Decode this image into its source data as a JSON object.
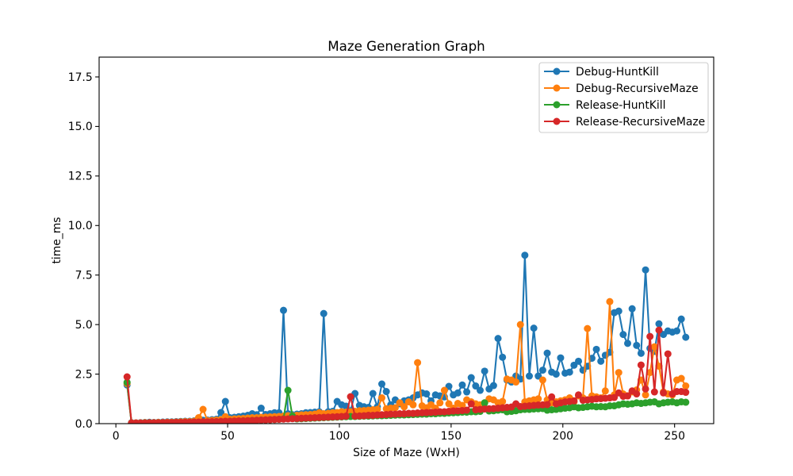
{
  "chart_data": {
    "type": "line",
    "title": "Maze Generation Graph",
    "xlabel": "Size of Maze (WxH)",
    "ylabel": "time_ms",
    "xlim": [
      -7.5,
      267.5
    ],
    "ylim": [
      0,
      18.5
    ],
    "xticks": [
      0,
      50,
      100,
      150,
      200,
      250
    ],
    "xtick_labels": [
      "0",
      "50",
      "100",
      "150",
      "200",
      "250"
    ],
    "yticks": [
      0,
      2.5,
      5,
      7.5,
      10,
      12.5,
      15,
      17.5
    ],
    "ytick_labels": [
      "0.0",
      "2.5",
      "5.0",
      "7.5",
      "10.0",
      "12.5",
      "15.0",
      "17.5"
    ],
    "grid": false,
    "legend": "top-right",
    "marker": "circle",
    "x": [
      5,
      7,
      9,
      11,
      13,
      15,
      17,
      19,
      21,
      23,
      25,
      27,
      29,
      31,
      33,
      35,
      37,
      39,
      41,
      43,
      45,
      47,
      49,
      51,
      53,
      55,
      57,
      59,
      61,
      63,
      65,
      67,
      69,
      71,
      73,
      75,
      77,
      79,
      81,
      83,
      85,
      87,
      89,
      91,
      93,
      95,
      97,
      99,
      101,
      103,
      105,
      107,
      109,
      111,
      113,
      115,
      117,
      119,
      121,
      123,
      125,
      127,
      129,
      131,
      133,
      135,
      137,
      139,
      141,
      143,
      145,
      147,
      149,
      151,
      153,
      155,
      157,
      159,
      161,
      163,
      165,
      167,
      169,
      171,
      173,
      175,
      177,
      179,
      181,
      183,
      185,
      187,
      189,
      191,
      193,
      195,
      197,
      199,
      201,
      203,
      205,
      207,
      209,
      211,
      213,
      215,
      217,
      219,
      221,
      223,
      225,
      227,
      229,
      231,
      233,
      235,
      237,
      239,
      241,
      243,
      245,
      247,
      249,
      251,
      253,
      255
    ],
    "series": [
      {
        "name": "Debug-HuntKill",
        "color": "#1f77b4",
        "values": [
          1.95,
          0.05,
          0.04,
          0.05,
          0.06,
          0.07,
          0.06,
          0.07,
          0.08,
          0.09,
          0.09,
          0.1,
          0.11,
          0.12,
          0.12,
          0.14,
          0.15,
          0.17,
          0.18,
          0.2,
          0.22,
          0.56,
          1.12,
          0.3,
          0.32,
          0.35,
          0.38,
          0.42,
          0.5,
          0.45,
          0.78,
          0.46,
          0.5,
          0.55,
          0.55,
          5.72,
          0.5,
          0.45,
          0.48,
          0.5,
          0.55,
          0.56,
          0.58,
          0.6,
          5.56,
          0.6,
          0.62,
          1.12,
          0.95,
          0.88,
          0.65,
          1.52,
          0.92,
          0.85,
          0.82,
          1.52,
          0.85,
          2.0,
          1.62,
          0.95,
          1.2,
          1.0,
          1.15,
          1.2,
          1.3,
          1.45,
          1.55,
          1.5,
          1.15,
          1.45,
          1.4,
          1.35,
          1.88,
          1.45,
          1.55,
          1.95,
          1.6,
          2.32,
          1.9,
          1.68,
          2.65,
          1.75,
          1.92,
          4.3,
          3.35,
          2.2,
          2.1,
          2.4,
          2.25,
          8.5,
          2.4,
          4.82,
          2.4,
          2.7,
          3.56,
          2.6,
          2.5,
          3.32,
          2.55,
          2.6,
          2.95,
          3.15,
          2.7,
          2.9,
          3.3,
          3.75,
          3.15,
          3.45,
          3.6,
          5.6,
          5.68,
          4.5,
          4.05,
          5.8,
          3.95,
          3.55,
          7.76,
          3.8,
          3.65,
          5.04,
          4.5,
          4.68,
          4.62,
          4.68,
          5.28,
          4.36
        ]
      },
      {
        "name": "Debug-RecursiveMaze",
        "color": "#ff7f0e",
        "values": [
          2.02,
          0.04,
          0.04,
          0.04,
          0.05,
          0.05,
          0.05,
          0.06,
          0.06,
          0.07,
          0.07,
          0.08,
          0.09,
          0.1,
          0.1,
          0.12,
          0.3,
          0.72,
          0.15,
          0.16,
          0.18,
          0.2,
          0.35,
          0.22,
          0.24,
          0.25,
          0.26,
          0.28,
          0.3,
          0.3,
          0.32,
          0.33,
          0.34,
          0.35,
          0.36,
          0.38,
          0.4,
          0.4,
          0.42,
          0.44,
          0.45,
          0.46,
          0.48,
          0.55,
          0.5,
          0.52,
          0.55,
          0.56,
          0.6,
          0.58,
          0.6,
          0.62,
          0.65,
          0.66,
          0.68,
          0.7,
          0.72,
          1.3,
          0.75,
          0.78,
          0.8,
          1.05,
          0.85,
          1.1,
          0.95,
          3.08,
          0.9,
          0.8,
          0.95,
          0.78,
          1.05,
          1.68,
          1.0,
          0.78,
          1.02,
          0.92,
          1.2,
          1.1,
          1.0,
          0.95,
          1.05,
          1.25,
          1.2,
          1.05,
          1.12,
          2.25,
          2.2,
          2.1,
          5.0,
          1.1,
          1.15,
          1.2,
          1.25,
          2.2,
          1.2,
          1.05,
          1.1,
          1.15,
          1.2,
          1.3,
          1.1,
          1.4,
          1.3,
          4.8,
          1.4,
          1.35,
          1.3,
          1.65,
          6.16,
          1.45,
          2.58,
          1.5,
          1.4,
          1.6,
          1.7,
          2.2,
          1.45,
          2.58,
          3.88,
          2.9,
          1.6,
          1.5,
          1.45,
          2.2,
          2.28,
          1.9
        ]
      },
      {
        "name": "Release-HuntKill",
        "color": "#2ca02c",
        "values": [
          2.08,
          0.02,
          0.02,
          0.02,
          0.03,
          0.03,
          0.03,
          0.03,
          0.04,
          0.04,
          0.04,
          0.05,
          0.05,
          0.06,
          0.06,
          0.07,
          0.07,
          0.08,
          0.08,
          0.09,
          0.1,
          0.1,
          0.11,
          0.12,
          0.12,
          0.13,
          0.14,
          0.15,
          0.16,
          0.17,
          0.18,
          0.19,
          0.2,
          0.21,
          0.22,
          0.24,
          1.68,
          0.38,
          0.24,
          0.25,
          0.26,
          0.27,
          0.28,
          0.29,
          0.3,
          0.31,
          0.32,
          0.33,
          0.34,
          0.35,
          0.36,
          0.36,
          0.37,
          0.38,
          0.38,
          0.39,
          0.4,
          0.4,
          0.41,
          0.42,
          0.43,
          0.44,
          0.44,
          0.45,
          0.46,
          0.47,
          0.48,
          0.48,
          0.5,
          0.5,
          0.52,
          0.52,
          0.54,
          0.55,
          0.56,
          0.58,
          0.58,
          0.6,
          0.6,
          0.62,
          1.05,
          0.64,
          0.65,
          0.68,
          0.7,
          0.6,
          0.62,
          0.65,
          0.7,
          0.72,
          0.72,
          0.74,
          0.75,
          0.76,
          0.68,
          0.7,
          0.72,
          0.75,
          0.78,
          0.8,
          0.85,
          0.8,
          0.82,
          0.85,
          0.88,
          0.85,
          0.86,
          0.85,
          0.9,
          0.9,
          0.95,
          1.0,
          0.98,
          1.0,
          1.05,
          1.02,
          1.05,
          1.08,
          1.1,
          1.0,
          1.05,
          1.08,
          1.1,
          1.05,
          1.1,
          1.08
        ]
      },
      {
        "name": "Release-RecursiveMaze",
        "color": "#d62728",
        "values": [
          2.36,
          0.03,
          0.03,
          0.03,
          0.03,
          0.04,
          0.04,
          0.04,
          0.05,
          0.05,
          0.05,
          0.06,
          0.06,
          0.07,
          0.07,
          0.08,
          0.08,
          0.09,
          0.09,
          0.1,
          0.1,
          0.11,
          0.12,
          0.12,
          0.13,
          0.14,
          0.14,
          0.15,
          0.16,
          0.17,
          0.18,
          0.19,
          0.2,
          0.21,
          0.22,
          0.23,
          0.24,
          0.25,
          0.26,
          0.27,
          0.28,
          0.29,
          0.3,
          0.31,
          0.32,
          0.33,
          0.34,
          0.35,
          0.36,
          0.38,
          1.36,
          0.38,
          0.39,
          0.4,
          0.42,
          0.42,
          0.44,
          0.45,
          0.46,
          0.48,
          0.48,
          0.5,
          0.5,
          0.52,
          0.52,
          0.54,
          0.55,
          0.56,
          0.57,
          0.58,
          0.6,
          0.6,
          0.62,
          0.64,
          0.65,
          0.66,
          0.68,
          1.0,
          0.7,
          0.72,
          0.74,
          0.75,
          0.76,
          0.78,
          0.8,
          0.82,
          0.84,
          1.0,
          0.86,
          0.88,
          0.9,
          0.92,
          0.94,
          0.95,
          0.96,
          1.35,
          1.0,
          1.05,
          1.1,
          1.12,
          1.15,
          1.45,
          1.18,
          1.2,
          1.22,
          1.25,
          1.26,
          1.28,
          1.3,
          1.32,
          1.55,
          1.38,
          1.4,
          1.65,
          1.5,
          2.96,
          1.75,
          4.4,
          1.6,
          4.72,
          1.55,
          3.52,
          1.5,
          1.62,
          1.62,
          1.58
        ]
      }
    ]
  }
}
